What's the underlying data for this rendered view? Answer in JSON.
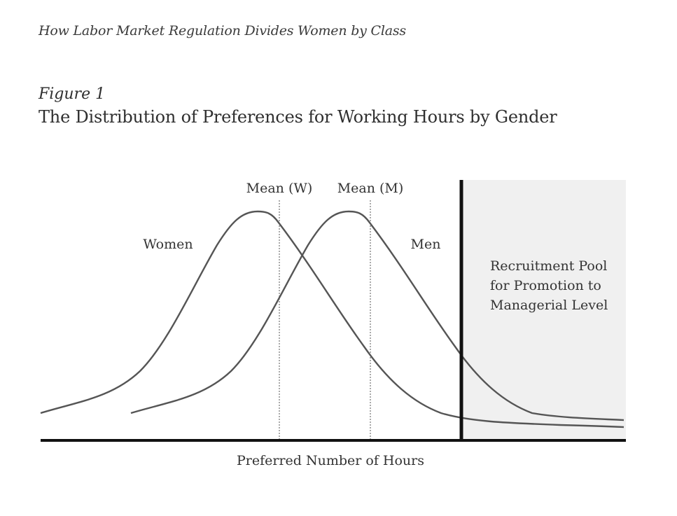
{
  "header": {
    "running_title": "How Labor Market Regulation Divides Women by Class"
  },
  "figure": {
    "label": "Figure 1",
    "title": "The Distribution of Preferences for Working Hours by Gender",
    "axis_label": "Preferred Number of Hours",
    "curves": [
      {
        "name": "Women"
      },
      {
        "name": "Men"
      }
    ],
    "markers": {
      "mean_women": "Mean (W)",
      "mean_men": "Mean (M)"
    },
    "region": {
      "line1": "Recruitment Pool",
      "line2": "for Promotion to",
      "line3": "Managerial Level"
    },
    "colors": {
      "curve": "#555555",
      "axis": "#111111",
      "region_fill": "#f0f0f0"
    }
  }
}
